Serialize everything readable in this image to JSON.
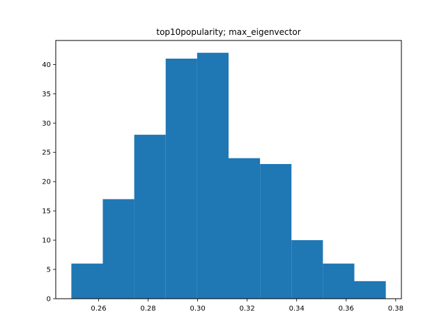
{
  "chart_data": {
    "type": "histogram",
    "title": "top10popularity; max_eigenvector",
    "xlabel": "",
    "ylabel": "",
    "bin_edges": [
      0.249,
      0.2617,
      0.2744,
      0.2871,
      0.2998,
      0.3125,
      0.3252,
      0.3379,
      0.3506,
      0.3633,
      0.376
    ],
    "values": [
      6,
      17,
      28,
      41,
      42,
      24,
      23,
      10,
      6,
      3
    ],
    "xlim": [
      0.2427,
      0.3823
    ],
    "ylim": [
      0,
      44.1
    ],
    "xticks": [
      0.26,
      0.28,
      0.3,
      0.32,
      0.34,
      0.36,
      0.38
    ],
    "xtick_labels": [
      "0.26",
      "0.28",
      "0.30",
      "0.32",
      "0.34",
      "0.36",
      "0.38"
    ],
    "yticks": [
      0,
      5,
      10,
      15,
      20,
      25,
      30,
      35,
      40
    ],
    "ytick_labels": [
      "0",
      "5",
      "10",
      "15",
      "20",
      "25",
      "30",
      "35",
      "40"
    ],
    "bar_color": "#1f77b4",
    "grid": false,
    "legend": "none"
  }
}
